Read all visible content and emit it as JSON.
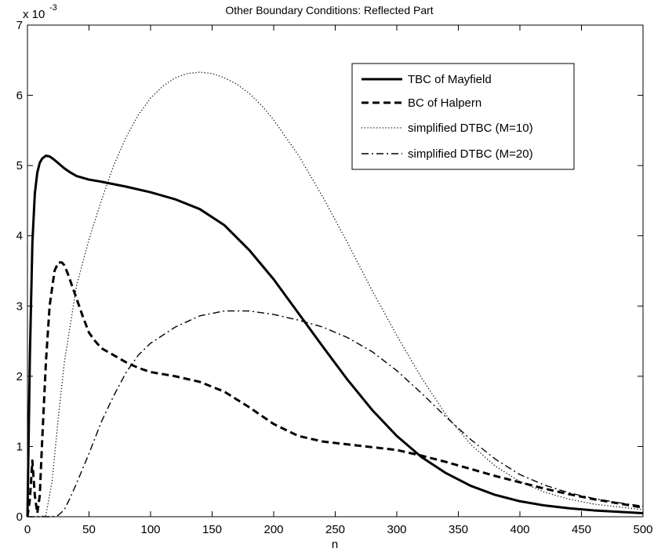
{
  "chart_data": {
    "type": "line",
    "title": "Other Boundary Conditions: Reflected Part",
    "xlabel": "n",
    "ylabel": "",
    "xlim": [
      0,
      500
    ],
    "ylim": [
      0,
      7
    ],
    "y_scale_label": "x 10",
    "y_scale_exponent": "-3",
    "xticks": [
      "0",
      "50",
      "100",
      "150",
      "200",
      "250",
      "300",
      "350",
      "400",
      "450",
      "500"
    ],
    "yticks": [
      "0",
      "1",
      "2",
      "3",
      "4",
      "5",
      "6",
      "7"
    ],
    "grid": false,
    "legend_position": "top-right",
    "series": [
      {
        "name": "TBC of Mayfield",
        "style": "solid",
        "x": [
          0,
          2,
          4,
          6,
          8,
          10,
          12,
          15,
          18,
          22,
          26,
          30,
          35,
          40,
          50,
          60,
          80,
          100,
          120,
          140,
          160,
          180,
          200,
          220,
          240,
          260,
          280,
          300,
          320,
          340,
          360,
          380,
          400,
          420,
          440,
          460,
          480,
          500
        ],
        "values": [
          0,
          2.3,
          3.9,
          4.6,
          4.9,
          5.04,
          5.1,
          5.14,
          5.13,
          5.08,
          5.02,
          4.96,
          4.9,
          4.85,
          4.8,
          4.77,
          4.7,
          4.62,
          4.52,
          4.38,
          4.15,
          3.8,
          3.38,
          2.9,
          2.42,
          1.95,
          1.52,
          1.15,
          0.85,
          0.62,
          0.44,
          0.31,
          0.22,
          0.16,
          0.12,
          0.09,
          0.07,
          0.05
        ]
      },
      {
        "name": "BC of Halpern",
        "style": "dashed",
        "x": [
          0,
          2,
          4,
          6,
          8,
          10,
          12,
          15,
          18,
          22,
          25,
          28,
          30,
          33,
          36,
          40,
          45,
          50,
          55,
          60,
          70,
          80,
          90,
          100,
          120,
          140,
          160,
          180,
          200,
          220,
          240,
          260,
          280,
          300,
          320,
          340,
          360,
          380,
          400,
          420,
          440,
          460,
          480,
          500
        ],
        "values": [
          0,
          0.25,
          0.8,
          0.3,
          0.05,
          0.3,
          1.1,
          2.2,
          3.0,
          3.5,
          3.62,
          3.62,
          3.58,
          3.45,
          3.3,
          3.1,
          2.85,
          2.62,
          2.5,
          2.4,
          2.3,
          2.2,
          2.12,
          2.06,
          2.0,
          1.92,
          1.78,
          1.56,
          1.32,
          1.15,
          1.07,
          1.03,
          0.99,
          0.95,
          0.87,
          0.78,
          0.68,
          0.58,
          0.49,
          0.4,
          0.32,
          0.25,
          0.19,
          0.13
        ]
      },
      {
        "name": "simplified DTBC (M=10)",
        "style": "dotted",
        "x": [
          0,
          10,
          15,
          20,
          25,
          30,
          40,
          50,
          60,
          70,
          80,
          90,
          100,
          110,
          120,
          130,
          140,
          150,
          160,
          170,
          180,
          190,
          200,
          220,
          240,
          260,
          280,
          300,
          320,
          340,
          360,
          380,
          400,
          420,
          440,
          460,
          480,
          500
        ],
        "values": [
          0,
          0,
          0.02,
          0.5,
          1.4,
          2.2,
          3.3,
          3.95,
          4.5,
          5.0,
          5.4,
          5.72,
          5.96,
          6.13,
          6.25,
          6.31,
          6.33,
          6.31,
          6.25,
          6.16,
          6.03,
          5.86,
          5.65,
          5.15,
          4.55,
          3.9,
          3.22,
          2.58,
          1.98,
          1.45,
          1.03,
          0.72,
          0.5,
          0.35,
          0.25,
          0.18,
          0.14,
          0.1
        ]
      },
      {
        "name": "simplified DTBC (M=20)",
        "style": "dashdot",
        "x": [
          0,
          20,
          25,
          30,
          35,
          40,
          50,
          60,
          70,
          80,
          90,
          100,
          120,
          140,
          160,
          180,
          200,
          220,
          240,
          260,
          280,
          300,
          320,
          340,
          360,
          380,
          400,
          420,
          440,
          460,
          480,
          500
        ],
        "values": [
          0,
          0,
          0.02,
          0.1,
          0.28,
          0.48,
          0.9,
          1.35,
          1.72,
          2.05,
          2.3,
          2.47,
          2.7,
          2.86,
          2.93,
          2.93,
          2.88,
          2.8,
          2.7,
          2.55,
          2.35,
          2.08,
          1.76,
          1.42,
          1.1,
          0.82,
          0.6,
          0.45,
          0.34,
          0.26,
          0.2,
          0.15
        ]
      }
    ]
  }
}
